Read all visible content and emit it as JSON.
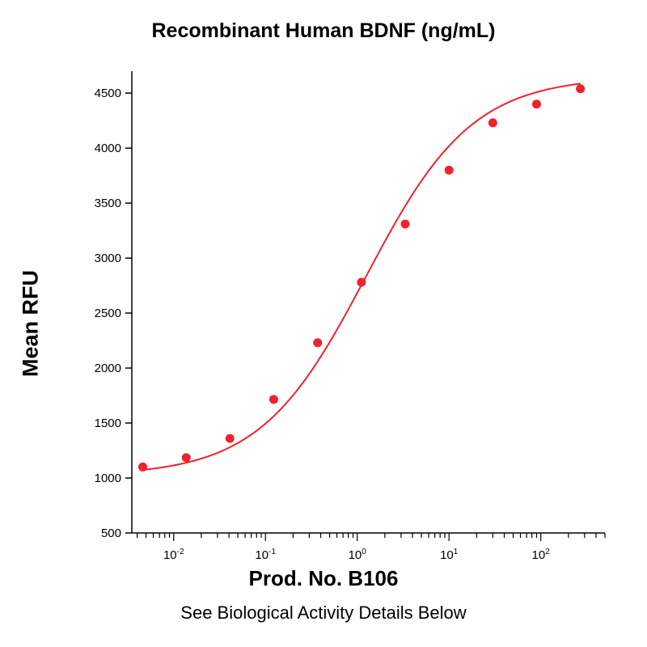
{
  "chart_data": {
    "type": "scatter",
    "title": "Recombinant Human BDNF (ng/mL)",
    "xlabel": "Prod. No. B106",
    "ylabel": "Mean RFU",
    "caption": "See Biological Activity Details Below",
    "x_scale": "log",
    "xlim": [
      0.0035,
      500
    ],
    "ylim": [
      500,
      4700
    ],
    "y_ticks": [
      500,
      1000,
      1500,
      2000,
      2500,
      3000,
      3500,
      4000,
      4500
    ],
    "x_major_ticks": [
      {
        "value": 0.01,
        "base": "10",
        "exp": "-2"
      },
      {
        "value": 0.1,
        "base": "10",
        "exp": "-1"
      },
      {
        "value": 1,
        "base": "10",
        "exp": "0"
      },
      {
        "value": 10,
        "base": "10",
        "exp": "1"
      },
      {
        "value": 100,
        "base": "10",
        "exp": "2"
      }
    ],
    "grid": false,
    "series": [
      {
        "color": "#f0222e",
        "x": [
          0.0046,
          0.0137,
          0.041,
          0.123,
          0.37,
          1.11,
          3.33,
          10,
          30,
          90,
          270
        ],
        "y": [
          1100,
          1185,
          1360,
          1715,
          2230,
          2780,
          3310,
          3800,
          4230,
          4400,
          4540
        ]
      }
    ],
    "fit_curve": {
      "type": "4PL",
      "bottom": 1020,
      "top": 4650,
      "ec50": 1.25,
      "hill": 0.75,
      "x_range": [
        0.0046,
        270
      ]
    }
  }
}
